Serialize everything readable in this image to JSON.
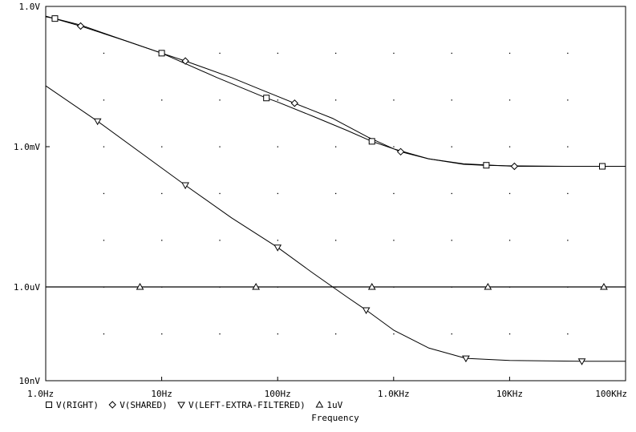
{
  "chart_data": {
    "type": "line",
    "x_scale": "log",
    "y_scale": "log",
    "xlabel": "Frequency",
    "ylabel": "",
    "xlim": [
      1,
      100000
    ],
    "ylim_volts": [
      1e-08,
      1
    ],
    "x_ticks": [
      {
        "value": 1,
        "label": "1.0Hz"
      },
      {
        "value": 10,
        "label": "10Hz"
      },
      {
        "value": 100,
        "label": "100Hz"
      },
      {
        "value": 1000,
        "label": "1.0KHz"
      },
      {
        "value": 10000,
        "label": "10KHz"
      },
      {
        "value": 100000,
        "label": "100KHz"
      }
    ],
    "y_ticks": [
      {
        "value": 1,
        "label": "1.0V"
      },
      {
        "value": 0.001,
        "label": "1.0mV"
      },
      {
        "value": 1e-06,
        "label": "1.0uV"
      },
      {
        "value": 1e-08,
        "label": "10nV"
      }
    ],
    "grid": "dotted",
    "legend": "bottom-left",
    "series": [
      {
        "name": "V(RIGHT)",
        "marker": "square",
        "points": [
          [
            1,
            0.6
          ],
          [
            1.2,
            0.55
          ],
          [
            2,
            0.4
          ],
          [
            5,
            0.18
          ],
          [
            10,
            0.1
          ],
          [
            30,
            0.03
          ],
          [
            80,
            0.011
          ],
          [
            100,
            0.009
          ],
          [
            200,
            0.0045
          ],
          [
            400,
            0.0022
          ],
          [
            650,
            0.0013
          ],
          [
            1000,
            0.0009
          ],
          [
            2000,
            0.00055
          ],
          [
            4000,
            0.00042
          ],
          [
            6000,
            0.0004
          ],
          [
            10000,
            0.00039
          ],
          [
            30000,
            0.00038
          ],
          [
            60000,
            0.00038
          ],
          [
            100000,
            0.00038
          ]
        ]
      },
      {
        "name": "V(SHARED)",
        "marker": "diamond",
        "points": [
          [
            1,
            0.62
          ],
          [
            2,
            0.38
          ],
          [
            5,
            0.18
          ],
          [
            10,
            0.1
          ],
          [
            16,
            0.068
          ],
          [
            40,
            0.03
          ],
          [
            70,
            0.017
          ],
          [
            140,
            0.0085
          ],
          [
            300,
            0.004
          ],
          [
            600,
            0.0016
          ],
          [
            1000,
            0.0009
          ],
          [
            1150,
            0.00078
          ],
          [
            2000,
            0.00055
          ],
          [
            4000,
            0.00043
          ],
          [
            11000,
            0.00038
          ],
          [
            30000,
            0.00038
          ],
          [
            100000,
            0.00038
          ]
        ]
      },
      {
        "name": "V(LEFT-EXTRA-FILTERED)",
        "marker": "triangle-down",
        "points": [
          [
            1,
            0.02
          ],
          [
            2.8,
            0.0035
          ],
          [
            10,
            0.00035
          ],
          [
            16,
            0.00015
          ],
          [
            40,
            3e-05
          ],
          [
            100,
            7e-06
          ],
          [
            200,
            2e-06
          ],
          [
            400,
            6e-07
          ],
          [
            580,
            3.2e-07
          ],
          [
            1000,
            1.2e-07
          ],
          [
            2000,
            5e-08
          ],
          [
            4200,
            3e-08
          ],
          [
            10000,
            2.7e-08
          ],
          [
            42000,
            2.6e-08
          ],
          [
            100000,
            2.6e-08
          ]
        ]
      },
      {
        "name": "1uV",
        "marker": "triangle-up",
        "points": [
          [
            1,
            1e-06
          ],
          [
            100000,
            1e-06
          ]
        ]
      }
    ],
    "markers": [
      {
        "series": 0,
        "points": [
          [
            1.2,
            0.55
          ],
          [
            10,
            0.1
          ],
          [
            80,
            0.011
          ],
          [
            650,
            0.0013
          ],
          [
            6300,
            0.0004
          ],
          [
            63000,
            0.00038
          ]
        ]
      },
      {
        "series": 1,
        "points": [
          [
            2,
            0.38
          ],
          [
            16,
            0.068
          ],
          [
            140,
            0.0085
          ],
          [
            1150,
            0.00078
          ],
          [
            11000,
            0.00038
          ]
        ]
      },
      {
        "series": 2,
        "points": [
          [
            2.8,
            0.0035
          ],
          [
            16,
            0.00015
          ],
          [
            100,
            7e-06
          ],
          [
            580,
            3.2e-07
          ],
          [
            4200,
            3e-08
          ],
          [
            42000,
            2.6e-08
          ]
        ]
      },
      {
        "series": 3,
        "points": [
          [
            6.5,
            1e-06
          ],
          [
            65,
            1e-06
          ],
          [
            650,
            1e-06
          ],
          [
            6500,
            1e-06
          ],
          [
            65000,
            1e-06
          ]
        ]
      }
    ]
  }
}
